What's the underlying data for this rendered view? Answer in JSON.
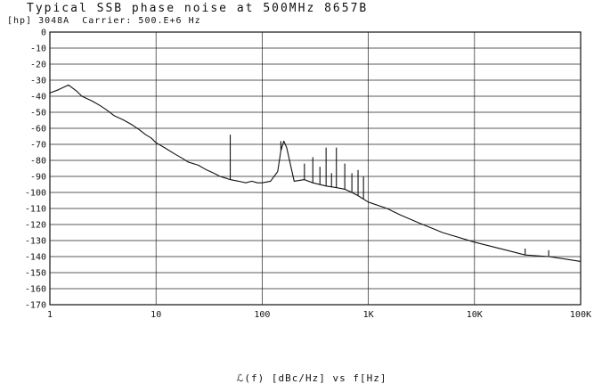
{
  "chart_data": {
    "type": "line",
    "title": "Typical SSB phase noise at 500MHz 8657B",
    "subtitle": "[hp] 3048A  Carrier: 500.E+6 Hz",
    "xlabel": "ℒ(f) [dBc/Hz] vs f[Hz]",
    "ylabel": "",
    "xscale": "log",
    "xlim": [
      1,
      100000
    ],
    "ylim": [
      -170,
      0
    ],
    "grid": true,
    "x_tick_labels": [
      "1",
      "10",
      "100",
      "1K",
      "10K",
      "100K"
    ],
    "x_tick_values": [
      1,
      10,
      100,
      1000,
      10000,
      100000
    ],
    "y_tick_values": [
      0,
      -10,
      -20,
      -30,
      -40,
      -50,
      -60,
      -70,
      -80,
      -90,
      -100,
      -110,
      -120,
      -130,
      -140,
      -150,
      -160,
      -170
    ],
    "series": [
      {
        "x": [
          1,
          1.2,
          1.5,
          1.8,
          2,
          2.5,
          3,
          3.5,
          4,
          5,
          6,
          7,
          8,
          9,
          10,
          12,
          15,
          18,
          20,
          25,
          30,
          35,
          40,
          45,
          50,
          60,
          70,
          80,
          90,
          100,
          120,
          140,
          150,
          160,
          170,
          200,
          250,
          300,
          400,
          500,
          600,
          700,
          800,
          1000,
          1500,
          2000,
          3000,
          5000,
          10000,
          20000,
          30000,
          50000,
          100000
        ],
        "y": [
          -38,
          -36,
          -33,
          -37,
          -40,
          -43,
          -46,
          -49,
          -52,
          -55,
          -58,
          -61,
          -64,
          -66,
          -69,
          -72,
          -76,
          -79,
          -81,
          -83,
          -86,
          -88,
          -90,
          -91,
          -92,
          -93,
          -94,
          -93,
          -94,
          -94,
          -93,
          -87,
          -74,
          -68,
          -72,
          -93,
          -92,
          -94,
          -96,
          -97,
          -98,
          -100,
          -102,
          -106,
          -110,
          -114,
          -119,
          -125,
          -131,
          -136,
          -139,
          -140,
          -143
        ]
      }
    ],
    "spurs": [
      {
        "x": 50,
        "y": -64
      },
      {
        "x": 150,
        "y": -68
      },
      {
        "x": 250,
        "y": -82
      },
      {
        "x": 300,
        "y": -78
      },
      {
        "x": 350,
        "y": -84
      },
      {
        "x": 400,
        "y": -72
      },
      {
        "x": 450,
        "y": -88
      },
      {
        "x": 500,
        "y": -72
      },
      {
        "x": 600,
        "y": -82
      },
      {
        "x": 700,
        "y": -88
      },
      {
        "x": 800,
        "y": -86
      },
      {
        "x": 900,
        "y": -90
      },
      {
        "x": 30000,
        "y": -135
      },
      {
        "x": 50000,
        "y": -136
      }
    ]
  }
}
